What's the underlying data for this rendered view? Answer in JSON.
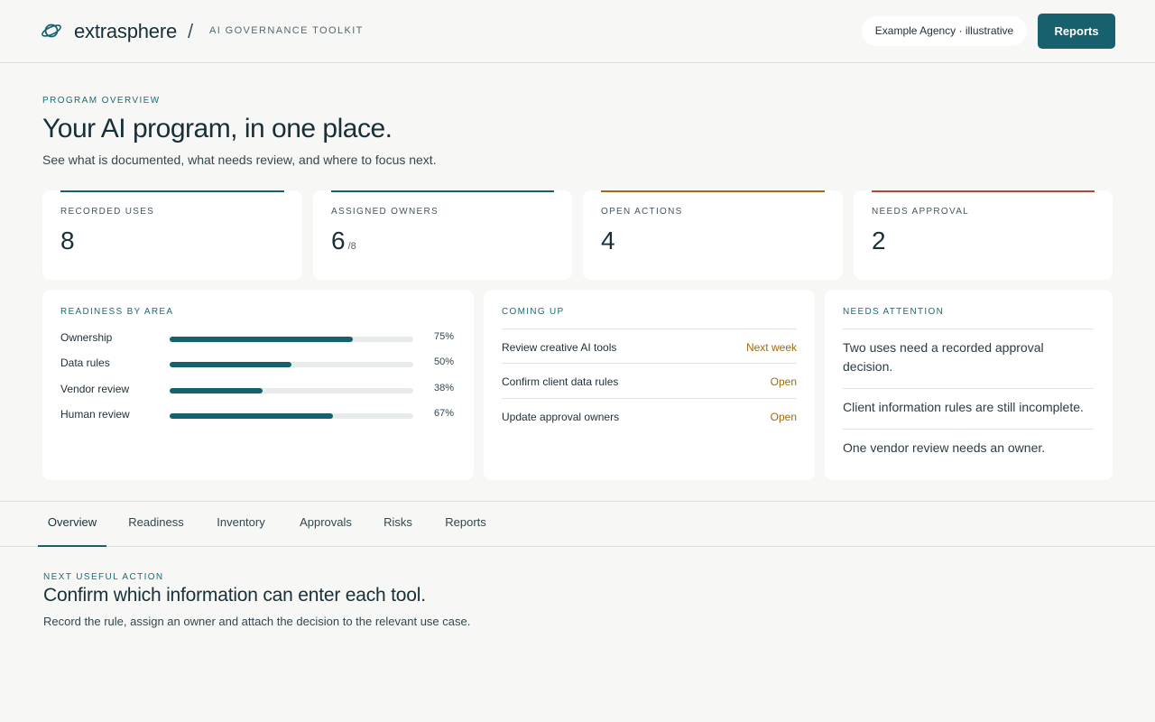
{
  "header": {
    "brand": "extrasphere",
    "separator": "/",
    "product": "AI GOVERNANCE TOOLKIT",
    "agency": "Example Agency · illustrative",
    "reports_button": "Reports",
    "logo_icon": "planet-ring-icon"
  },
  "overview": {
    "eyebrow": "PROGRAM OVERVIEW",
    "title": "Your AI program, in one place.",
    "subtitle": "See what is documented, what needs review, and where to focus next."
  },
  "stats": [
    {
      "label": "RECORDED USES",
      "value": "8",
      "suffix": "",
      "accent": "#17606e"
    },
    {
      "label": "ASSIGNED OWNERS",
      "value": "6",
      "suffix": "/8",
      "accent": "#17606e"
    },
    {
      "label": "OPEN ACTIONS",
      "value": "4",
      "suffix": "",
      "accent": "#a06a10"
    },
    {
      "label": "NEEDS APPROVAL",
      "value": "2",
      "suffix": "",
      "accent": "#b0453a"
    }
  ],
  "readiness": {
    "title": "READINESS BY AREA",
    "items": [
      {
        "label": "Ownership",
        "percent": 75,
        "percent_label": "75%"
      },
      {
        "label": "Data rules",
        "percent": 50,
        "percent_label": "50%"
      },
      {
        "label": "Vendor review",
        "percent": 38,
        "percent_label": "38%"
      },
      {
        "label": "Human review",
        "percent": 67,
        "percent_label": "67%"
      }
    ]
  },
  "coming_up": {
    "title": "COMING UP",
    "items": [
      {
        "label": "Review creative AI tools",
        "status": "Next week"
      },
      {
        "label": "Confirm client data rules",
        "status": "Open"
      },
      {
        "label": "Update approval owners",
        "status": "Open"
      }
    ]
  },
  "attention": {
    "title": "NEEDS ATTENTION",
    "items": [
      "Two uses need a recorded approval decision.",
      "Client information rules are still incomplete.",
      "One vendor review needs an owner."
    ]
  },
  "tabs": [
    {
      "label": "Overview",
      "active": true
    },
    {
      "label": "Readiness",
      "active": false
    },
    {
      "label": "Inventory",
      "active": false
    },
    {
      "label": "Approvals",
      "active": false
    },
    {
      "label": "Risks",
      "active": false
    },
    {
      "label": "Reports",
      "active": false
    }
  ],
  "next_action": {
    "eyebrow": "NEXT USEFUL ACTION",
    "title": "Confirm which information can enter each tool.",
    "subtitle": "Record the rule, assign an owner and attach the decision to the relevant use case."
  }
}
